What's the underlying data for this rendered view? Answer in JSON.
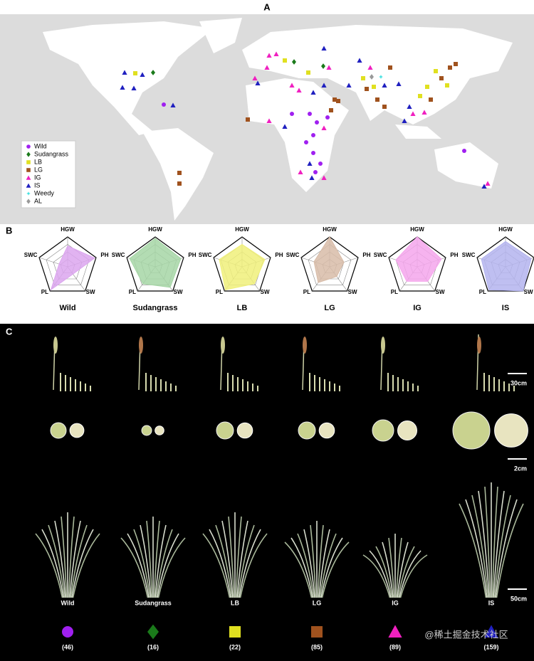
{
  "panel_labels": [
    "A",
    "B",
    "C"
  ],
  "map": {
    "legend": [
      {
        "name": "Wild",
        "color": "#a020f0",
        "marker": "circle"
      },
      {
        "name": "Sudangrass",
        "color": "#1a7a1a",
        "marker": "diamond"
      },
      {
        "name": "LB",
        "color": "#e0e020",
        "marker": "square"
      },
      {
        "name": "LG",
        "color": "#a0521e",
        "marker": "square"
      },
      {
        "name": "IG",
        "color": "#f020c0",
        "marker": "triangle"
      },
      {
        "name": "IS",
        "color": "#2020c0",
        "marker": "triangle"
      },
      {
        "name": "Weedy",
        "color": "#40e0e0",
        "marker": "star"
      },
      {
        "name": "AL",
        "color": "#999999",
        "marker": "diamond"
      }
    ]
  },
  "radar": {
    "axes": [
      "HGW",
      "PH",
      "SW",
      "PL",
      "SWC"
    ],
    "rlim": [
      0,
      1
    ],
    "rticks": [
      0.25,
      0.5,
      0.75,
      1
    ],
    "groups": [
      {
        "name": "Wild",
        "color": "#dca6ef",
        "values": [
          0.7,
          0.95,
          0.3,
          0.95,
          0.3
        ]
      },
      {
        "name": "Sudangrass",
        "color": "#a6d6a6",
        "values": [
          0.95,
          0.9,
          0.85,
          0.7,
          0.9
        ]
      },
      {
        "name": "LB",
        "color": "#f0f07a",
        "values": [
          0.75,
          0.8,
          0.7,
          0.95,
          0.8
        ]
      },
      {
        "name": "LG",
        "color": "#d8bca8",
        "values": [
          1,
          0.5,
          0.4,
          0.65,
          0.55
        ]
      },
      {
        "name": "IG",
        "color": "#f5a6ec",
        "values": [
          1,
          0.85,
          0.6,
          0.6,
          0.75
        ]
      },
      {
        "name": "IS",
        "color": "#b4b4ee",
        "values": [
          0.85,
          0.9,
          1,
          0.95,
          0.85
        ]
      }
    ]
  },
  "photos": {
    "scale_bars": [
      "30cm",
      "2cm",
      "50cm"
    ],
    "groups": [
      {
        "name": "Wild",
        "count": "(46)"
      },
      {
        "name": "Sudangrass",
        "count": "(16)"
      },
      {
        "name": "LB",
        "count": "(22)"
      },
      {
        "name": "LG",
        "count": "(85)"
      },
      {
        "name": "IG",
        "count": "(89)"
      },
      {
        "name": "IS",
        "count": "(159)"
      }
    ]
  },
  "watermark": "@稀土掘金技术社区"
}
